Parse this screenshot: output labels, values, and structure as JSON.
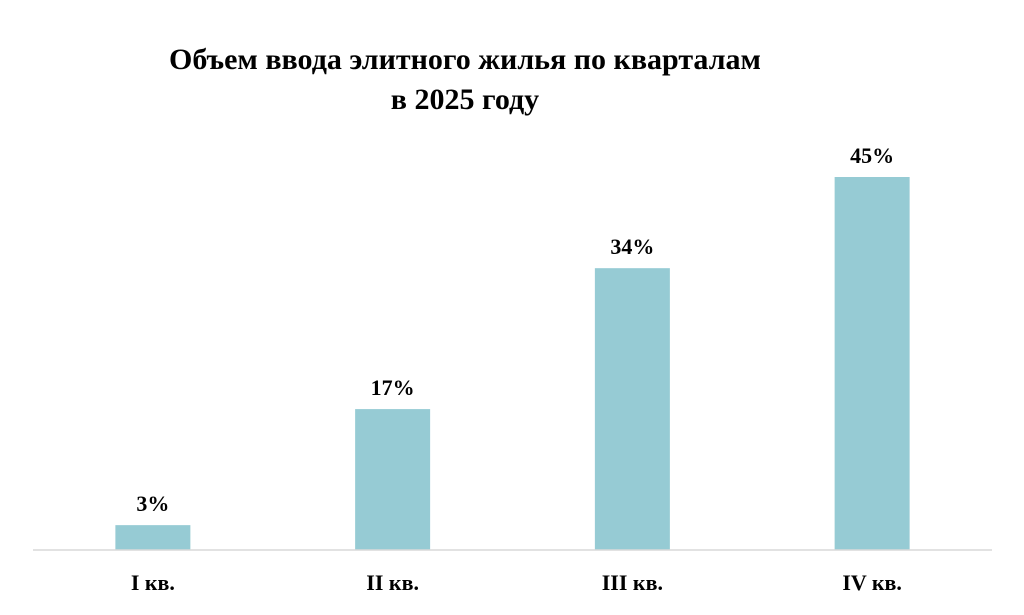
{
  "chart_data": {
    "type": "bar",
    "title_lines": [
      "Объем ввода элитного жилья по кварталам",
      "в 2025 году"
    ],
    "categories": [
      "I кв.",
      "II кв.",
      "III кв.",
      "IV кв."
    ],
    "values": [
      3,
      17,
      34,
      45
    ],
    "data_labels": [
      "3%",
      "17%",
      "34%",
      "45%"
    ],
    "value_unit": "%",
    "xlabel": "",
    "ylabel": "",
    "ylim": [
      0,
      50
    ],
    "grid": false,
    "legend": "none",
    "bar_color": "#96CBD4",
    "axis_color": "#D9D9D9"
  }
}
